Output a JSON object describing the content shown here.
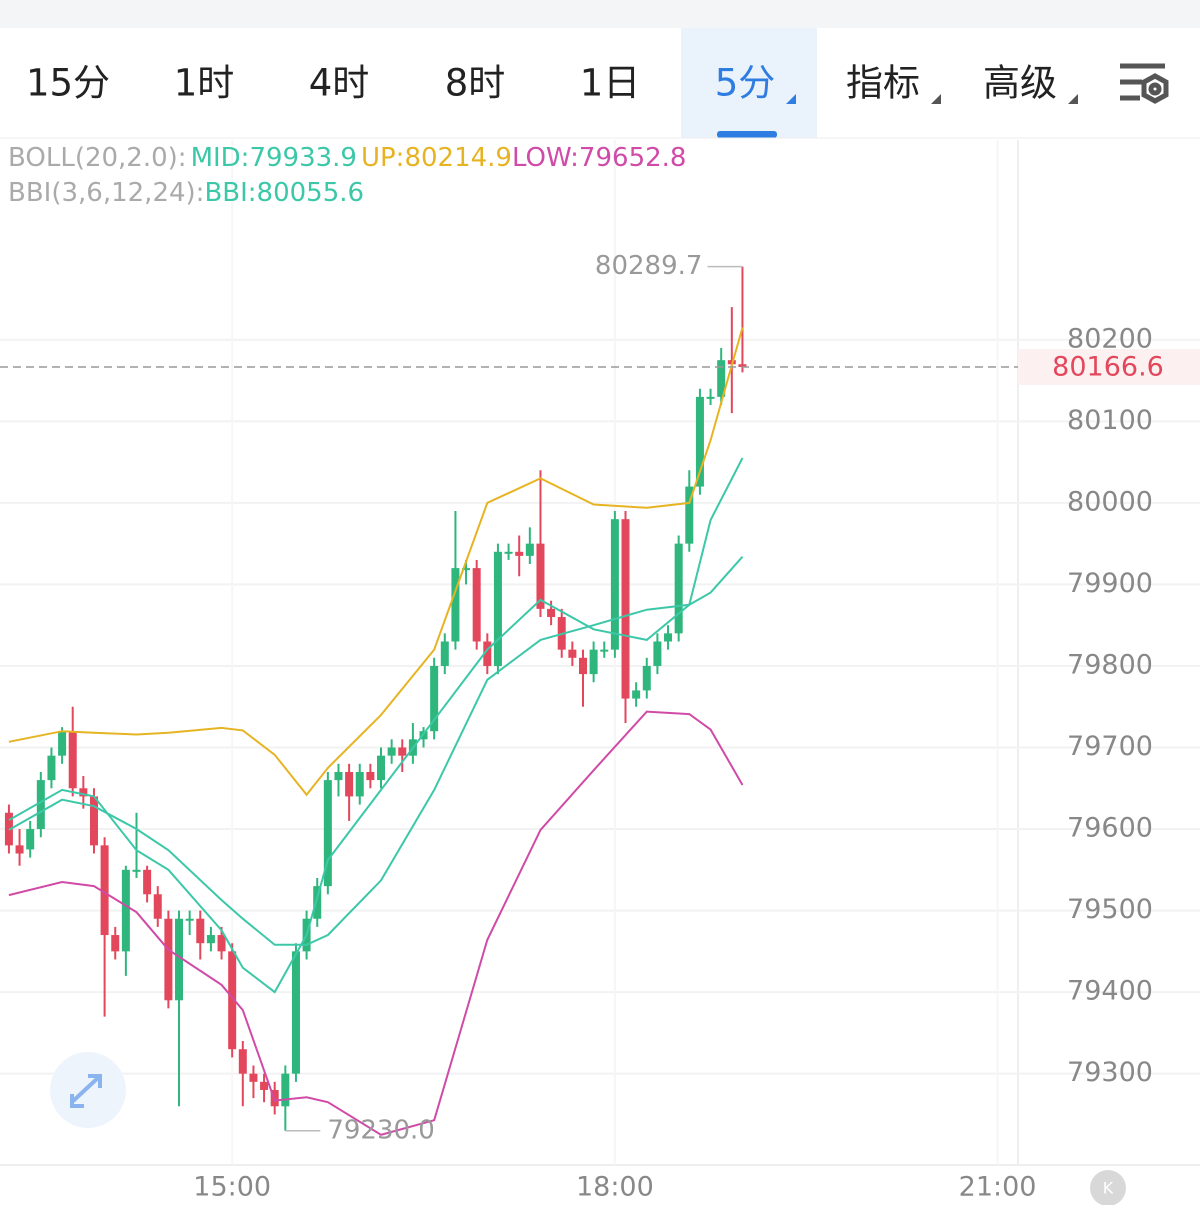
{
  "tabs": [
    "15分",
    "1时",
    "4时",
    "8时",
    "1日",
    "5分",
    "指标",
    "高级"
  ],
  "chart_data": {
    "type": "candlestick",
    "legend": [
      [
        {
          "text": "BOLL(20,2.0):",
          "color": "#aaaaaa"
        },
        {
          "text": "MID:79933.9",
          "color": "#3cc8a8"
        },
        {
          "text": "UP:80214.9",
          "color": "#e6b422"
        },
        {
          "text": "LOW:79652.8",
          "color": "#d04aa7"
        }
      ],
      [
        {
          "text": "BBI(3,6,12,24):",
          "color": "#aaaaaa"
        },
        {
          "text": "BBI:80055.6",
          "color": "#3cc8a8"
        }
      ]
    ],
    "x": [
      13.25,
      13.3333,
      13.4167,
      13.5,
      13.5833,
      13.6667,
      13.75,
      13.8333,
      13.9167,
      14,
      14.0833,
      14.1667,
      14.25,
      14.3333,
      14.4167,
      14.5,
      14.5833,
      14.6667,
      14.75,
      14.8333,
      14.9167,
      15,
      15.0833,
      15.1667,
      15.25,
      15.3333,
      15.4167,
      15.5,
      15.5833,
      15.6667,
      15.75,
      15.8333,
      15.9167,
      16,
      16.0833,
      16.1667,
      16.25,
      16.3333,
      16.4167,
      16.5,
      16.5833,
      16.6667,
      16.75,
      16.8333,
      16.9167,
      17,
      17.0833,
      17.1667,
      17.25,
      17.3333,
      17.4167,
      17.5,
      17.5833,
      17.6667,
      17.75,
      17.8333,
      17.9167,
      18,
      18.0833,
      18.1667,
      18.25,
      18.3333,
      18.4167,
      18.5,
      18.5833,
      18.6667,
      18.75,
      18.8333,
      18.9167,
      19
    ],
    "open": [
      79620,
      79580,
      79575,
      79600,
      79660,
      79690,
      79720,
      79650,
      79640,
      79580,
      79470,
      79450,
      79550,
      79550,
      79520,
      79490,
      79390,
      79490,
      79490,
      79460,
      79470,
      79450,
      79330,
      79300,
      79290,
      79280,
      79260,
      79300,
      79450,
      79490,
      79530,
      79660,
      79670,
      79640,
      79670,
      79660,
      79690,
      79700,
      79690,
      79710,
      79720,
      79800,
      79830,
      79920,
      79920,
      79830,
      79800,
      79940,
      79940,
      79935,
      79950,
      79870,
      79860,
      79820,
      79810,
      79790,
      79820,
      79820,
      79980,
      79760,
      79770,
      79800,
      79830,
      79840,
      79950,
      80020,
      80130,
      80130,
      80175,
      80170
    ],
    "high": [
      79630,
      79600,
      79610,
      79670,
      79700,
      79725,
      79750,
      79665,
      79650,
      79590,
      79480,
      79555,
      79620,
      79555,
      79530,
      79500,
      79500,
      79500,
      79500,
      79480,
      79480,
      79460,
      79340,
      79310,
      79300,
      79290,
      79310,
      79460,
      79500,
      79540,
      79670,
      79680,
      79680,
      79680,
      79680,
      79700,
      79710,
      79710,
      79730,
      79725,
      79810,
      79840,
      79990,
      79930,
      79930,
      79840,
      79950,
      79950,
      79960,
      79970,
      80040,
      79880,
      79870,
      79830,
      79820,
      79830,
      79830,
      79990,
      79990,
      79780,
      79810,
      79840,
      79850,
      79960,
      80040,
      80140,
      80140,
      80190,
      80240,
      80289.7
    ],
    "low": [
      79570,
      79555,
      79565,
      79590,
      79650,
      79680,
      79640,
      79625,
      79570,
      79370,
      79440,
      79420,
      79540,
      79510,
      79480,
      79380,
      79260,
      79470,
      79440,
      79450,
      79440,
      79320,
      79260,
      79270,
      79265,
      79250,
      79230,
      79290,
      79440,
      79480,
      79520,
      79640,
      79610,
      79630,
      79650,
      79650,
      79680,
      79670,
      79680,
      79700,
      79710,
      79790,
      79820,
      79900,
      79820,
      79790,
      79790,
      79930,
      79910,
      79925,
      79860,
      79850,
      79810,
      79800,
      79750,
      79780,
      79810,
      79810,
      79730,
      79750,
      79760,
      79790,
      79820,
      79830,
      79940,
      80010,
      80120,
      80120,
      80110,
      80160
    ],
    "close": [
      79580,
      79570,
      79600,
      79660,
      79690,
      79720,
      79650,
      79640,
      79580,
      79470,
      79450,
      79550,
      79550,
      79520,
      79490,
      79390,
      79490,
      79490,
      79460,
      79470,
      79450,
      79330,
      79300,
      79290,
      79280,
      79260,
      79300,
      79450,
      79490,
      79530,
      79660,
      79670,
      79640,
      79670,
      79660,
      79690,
      79700,
      79690,
      79710,
      79720,
      79800,
      79830,
      79920,
      79920,
      79830,
      79800,
      79940,
      79940,
      79935,
      79950,
      79870,
      79860,
      79820,
      79810,
      79790,
      79820,
      79820,
      79980,
      79760,
      79770,
      79800,
      79830,
      79840,
      79950,
      80020,
      80130,
      80130,
      80175,
      80170,
      80166.6
    ],
    "up_color": "#2eb67d",
    "down_color": "#e3475b",
    "lines": {
      "x": [
        13.25,
        13.6667,
        13.9167,
        14.25,
        14.5,
        14.9167,
        15.0833,
        15.3333,
        15.5833,
        15.75,
        16.1667,
        16.5833,
        17,
        17.4167,
        17.8333,
        18.25,
        18.5833,
        18.75,
        19
      ],
      "series": [
        {
          "color": "#e6b422",
          "values": [
            79707,
            79720,
            79718,
            79716,
            79718,
            79724,
            79721,
            79691,
            79642,
            79675,
            79740,
            79820,
            80000,
            80030,
            79998,
            79994,
            80000,
            80077,
            80215
          ]
        },
        {
          "color": "#d04aa7",
          "values": [
            79519,
            79535,
            79530,
            79498,
            79452,
            79409,
            79378,
            79267,
            79271,
            79265,
            79225,
            79243,
            79464,
            79599,
            79672,
            79744,
            79741,
            79722,
            79654
          ]
        },
        {
          "color": "#3cc8a8",
          "values": [
            79599,
            79636,
            79628,
            79600,
            79574,
            79513,
            79490,
            79458,
            79458,
            79470,
            79537,
            79648,
            79783,
            79832,
            79850,
            79869,
            79875,
            79890,
            79934
          ]
        },
        {
          "color": "#3cc8a8",
          "values": [
            79611,
            79648,
            79640,
            79574,
            79550,
            79476,
            79430,
            79400,
            79470,
            79562,
            79648,
            79734,
            79820,
            79881,
            79845,
            79832,
            79875,
            79979,
            80055
          ]
        }
      ]
    },
    "max_label": 80289.7,
    "min_label": {
      "value": 79230,
      "label": "79230.0"
    },
    "last_price": 80166.6,
    "last_price_color": "#e3475b",
    "xlim": [
      13.18,
      21.16
    ],
    "xticks": [
      {
        "value": 15,
        "label": "15:00"
      },
      {
        "value": 18,
        "label": "18:00"
      },
      {
        "value": 21,
        "label": "21:00"
      }
    ],
    "ylim": [
      79188,
      80445
    ],
    "yticks": [
      79300,
      79400,
      79500,
      79600,
      79700,
      79800,
      79900,
      80000,
      80100,
      80200
    ],
    "grid": true
  }
}
